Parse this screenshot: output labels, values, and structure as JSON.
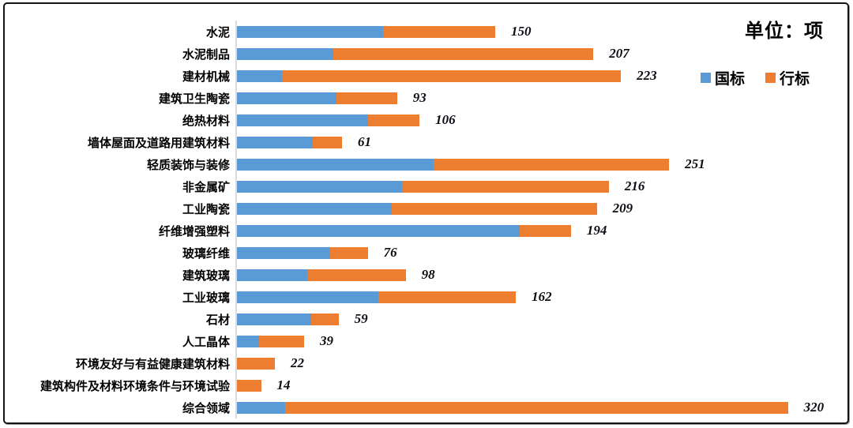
{
  "frame": {
    "unit_label": "单位：项"
  },
  "legend": [
    {
      "label": "国标",
      "color": "#5B9BD5"
    },
    {
      "label": "行标",
      "color": "#ED7D31"
    }
  ],
  "chart_data": {
    "type": "bar",
    "orientation": "horizontal",
    "stacked": true,
    "title": "单位：项",
    "unit": "项",
    "legend_position": "top-right",
    "grid": false,
    "axis_line_color": "#DBDBDB",
    "value_label_style": "bold-italic",
    "categories": [
      "水泥",
      "水泥制品",
      "建材机械",
      "建筑卫生陶瓷",
      "绝热材料",
      "墙体屋面及道路用建筑材料",
      "轻质装饰与装修",
      "非金属矿",
      "工业陶瓷",
      "纤维增强塑料",
      "玻璃纤维",
      "建筑玻璃",
      "工业玻璃",
      "石材",
      "人工晶体",
      "环境友好与有益健康建筑材料",
      "建筑构件及材料环境条件与环境试验",
      "综合领域"
    ],
    "series": [
      {
        "name": "国标",
        "color": "#5B9BD5",
        "values": [
          85,
          56,
          26,
          58,
          76,
          44,
          114,
          96,
          90,
          164,
          54,
          41,
          82,
          43,
          13,
          0,
          0,
          28
        ]
      },
      {
        "name": "行标",
        "color": "#ED7D31",
        "values": [
          65,
          151,
          197,
          35,
          30,
          17,
          137,
          120,
          119,
          30,
          22,
          57,
          80,
          16,
          26,
          22,
          14,
          292
        ]
      }
    ],
    "totals": [
      150,
      207,
      223,
      93,
      106,
      61,
      251,
      216,
      209,
      194,
      76,
      98,
      162,
      59,
      39,
      22,
      14,
      320
    ],
    "xlim": [
      0,
      335
    ]
  }
}
